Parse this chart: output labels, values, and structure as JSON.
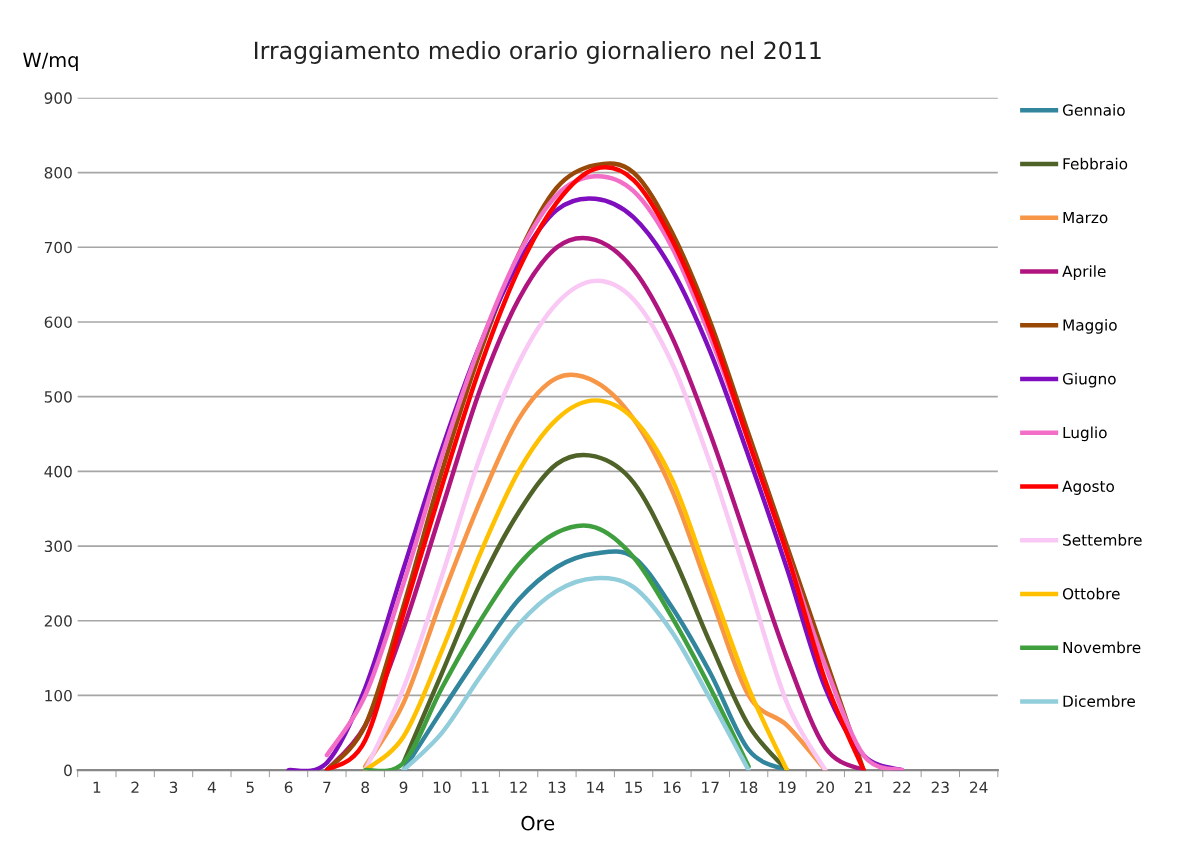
{
  "chart_data": {
    "type": "line",
    "title": "Irraggiamento medio orario giornaliero nel 2011",
    "xlabel": "Ore",
    "ylabel": "W/mq",
    "categories": [
      "1",
      "2",
      "3",
      "4",
      "5",
      "6",
      "7",
      "8",
      "9",
      "10",
      "11",
      "12",
      "13",
      "14",
      "15",
      "16",
      "17",
      "18",
      "19",
      "20",
      "21",
      "22",
      "23",
      "24"
    ],
    "ylim": [
      0,
      900
    ],
    "yticks": [
      0,
      100,
      200,
      300,
      400,
      500,
      600,
      700,
      800,
      900
    ],
    "grid": "y",
    "legend": "right",
    "marker": "none",
    "line_style": "solid",
    "series": [
      {
        "name": "Gennaio",
        "color": "#31859c",
        "values": [
          null,
          null,
          null,
          null,
          null,
          null,
          null,
          null,
          0,
          80,
          157,
          228,
          272,
          290,
          285,
          218,
          130,
          27,
          0,
          null,
          null,
          null,
          null,
          null
        ]
      },
      {
        "name": "Febbraio",
        "color": "#4f6228",
        "values": [
          null,
          null,
          null,
          null,
          null,
          null,
          null,
          null,
          10,
          130,
          250,
          345,
          410,
          420,
          385,
          290,
          170,
          60,
          0,
          null,
          null,
          null,
          null,
          null
        ]
      },
      {
        "name": "Marzo",
        "color": "#f79646",
        "values": [
          null,
          null,
          null,
          null,
          null,
          null,
          null,
          5,
          90,
          230,
          360,
          470,
          525,
          520,
          470,
          375,
          235,
          100,
          60,
          0,
          null,
          null,
          null,
          null
        ]
      },
      {
        "name": "Aprile",
        "color": "#b0157f",
        "values": [
          null,
          null,
          null,
          null,
          null,
          null,
          0,
          60,
          190,
          350,
          510,
          630,
          700,
          710,
          670,
          580,
          450,
          300,
          150,
          30,
          0,
          null,
          null,
          null
        ]
      },
      {
        "name": "Maggio",
        "color": "#984807",
        "values": [
          null,
          null,
          null,
          null,
          null,
          null,
          0,
          60,
          220,
          400,
          560,
          690,
          780,
          810,
          800,
          720,
          600,
          450,
          300,
          150,
          0,
          null,
          null,
          null
        ]
      },
      {
        "name": "Giugno",
        "color": "#7f0fbe",
        "values": [
          null,
          null,
          null,
          null,
          null,
          0,
          10,
          110,
          270,
          430,
          570,
          680,
          750,
          765,
          740,
          670,
          560,
          420,
          270,
          110,
          20,
          0,
          null,
          null
        ]
      },
      {
        "name": "Luglio",
        "color": "#f36fc7",
        "values": [
          null,
          null,
          null,
          null,
          null,
          null,
          20,
          100,
          250,
          420,
          570,
          690,
          770,
          795,
          775,
          700,
          580,
          440,
          290,
          140,
          20,
          0,
          null,
          null
        ]
      },
      {
        "name": "Agosto",
        "color": "#ff0000",
        "values": [
          null,
          null,
          null,
          null,
          null,
          null,
          0,
          40,
          210,
          380,
          540,
          670,
          760,
          805,
          790,
          710,
          590,
          440,
          290,
          120,
          0,
          null,
          null,
          null
        ]
      },
      {
        "name": "Settembre",
        "color": "#f9c8f4",
        "values": [
          null,
          null,
          null,
          null,
          null,
          null,
          null,
          0,
          110,
          260,
          420,
          545,
          625,
          655,
          630,
          545,
          410,
          250,
          90,
          0,
          null,
          null,
          null,
          null
        ]
      },
      {
        "name": "Ottobre",
        "color": "#ffc000",
        "values": [
          null,
          null,
          null,
          null,
          null,
          null,
          null,
          0,
          45,
          160,
          290,
          400,
          470,
          495,
          470,
          390,
          250,
          110,
          0,
          null,
          null,
          null,
          null,
          null
        ]
      },
      {
        "name": "Novembre",
        "color": "#3f9f3f",
        "values": [
          null,
          null,
          null,
          null,
          null,
          null,
          null,
          0,
          10,
          110,
          200,
          275,
          318,
          325,
          285,
          205,
          110,
          5,
          null,
          null,
          null,
          null,
          null,
          null
        ]
      },
      {
        "name": "Dicembre",
        "color": "#92cddc",
        "values": [
          null,
          null,
          null,
          null,
          null,
          null,
          null,
          null,
          0,
          50,
          125,
          195,
          240,
          257,
          245,
          185,
          95,
          0,
          null,
          null,
          null,
          null,
          null,
          null
        ]
      }
    ]
  }
}
